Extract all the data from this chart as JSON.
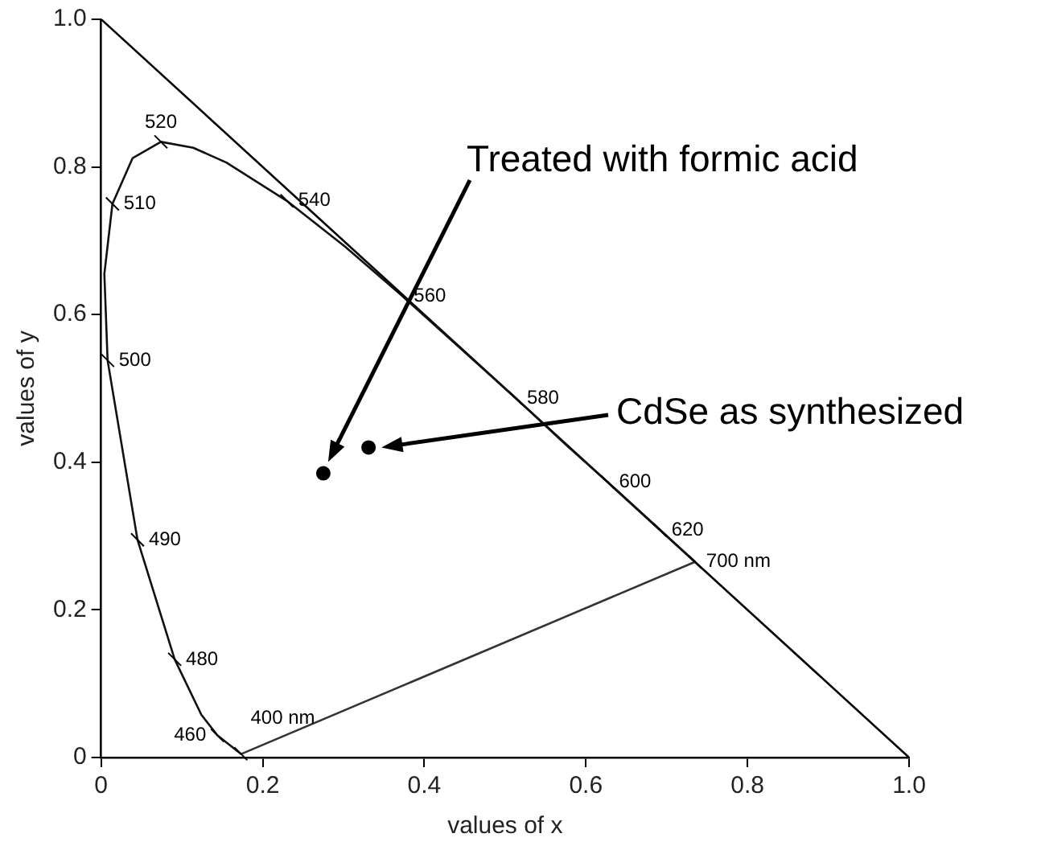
{
  "chart_data": {
    "type": "scatter",
    "xlabel": "values of x",
    "ylabel": "values of y",
    "xlim": [
      0,
      1
    ],
    "ylim": [
      0,
      1
    ],
    "xticks": [
      0,
      0.2,
      0.4,
      0.6,
      0.8,
      {
        "value": 1,
        "label": "1.0"
      }
    ],
    "yticks": [
      0,
      0.2,
      0.4,
      0.6,
      0.8,
      {
        "value": 1,
        "label": "1.0"
      }
    ],
    "grid": false,
    "legend": false,
    "series": [
      {
        "type": "line",
        "color": "#111111",
        "x": [
          0.174,
          0.173,
          0.144,
          0.124,
          0.091,
          0.045,
          0.008,
          0.004,
          0.014,
          0.039,
          0.074,
          0.114,
          0.155,
          0.23,
          0.302,
          0.373,
          0.444,
          0.513,
          0.575,
          0.627,
          0.692,
          0.719,
          0.735
        ],
        "values": [
          0.005,
          0.005,
          0.03,
          0.058,
          0.133,
          0.295,
          0.538,
          0.655,
          0.75,
          0.812,
          0.834,
          0.826,
          0.806,
          0.754,
          0.692,
          0.625,
          0.555,
          0.487,
          0.424,
          0.373,
          0.308,
          0.281,
          0.265
        ]
      },
      {
        "type": "line",
        "color": "#333333",
        "x": [
          0.174,
          0.735
        ],
        "values": [
          0.005,
          0.265
        ]
      },
      {
        "type": "line",
        "color": "#000000",
        "x": [
          0,
          1
        ],
        "values": [
          1,
          0
        ]
      },
      {
        "type": "scatter",
        "color": "#000000",
        "marker": "circle",
        "x": [
          0.275,
          0.331
        ],
        "values": [
          0.385,
          0.42
        ]
      }
    ],
    "annotations": [
      "Treated with formic acid",
      "CdSe as synthesized",
      {
        "text": "400 nm",
        "x": 0.173,
        "y": 0.005
      },
      {
        "text": "460",
        "x": 0.144,
        "y": 0.03
      },
      {
        "text": "480",
        "x": 0.091,
        "y": 0.133
      },
      {
        "text": "490",
        "x": 0.045,
        "y": 0.295
      },
      {
        "text": "500",
        "x": 0.008,
        "y": 0.538
      },
      {
        "text": "510",
        "x": 0.014,
        "y": 0.75
      },
      {
        "text": "520",
        "x": 0.074,
        "y": 0.834
      },
      {
        "text": "540",
        "x": 0.23,
        "y": 0.754
      },
      {
        "text": "560",
        "x": 0.373,
        "y": 0.625
      },
      {
        "text": "580",
        "x": 0.513,
        "y": 0.487
      },
      {
        "text": "600",
        "x": 0.627,
        "y": 0.373
      },
      {
        "text": "620",
        "x": 0.692,
        "y": 0.308
      },
      {
        "text": "700 nm",
        "x": 0.735,
        "y": 0.265
      }
    ]
  }
}
